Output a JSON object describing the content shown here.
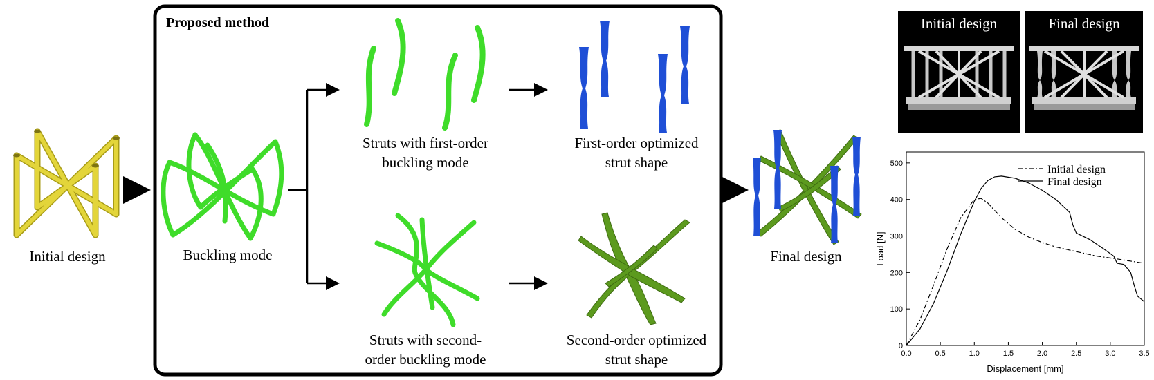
{
  "labels": {
    "initial_design": "Initial design",
    "buckling_mode": "Buckling mode",
    "proposed_method": "Proposed method",
    "struts_first_line1": "Struts with first-order",
    "struts_first_line2": "buckling mode",
    "first_opt_line1": "First-order optimized",
    "first_opt_line2": "strut shape",
    "struts_second_line1": "Struts with second-",
    "struts_second_line2": "order buckling mode",
    "second_opt_line1": "Second-order optimized",
    "second_opt_line2": "strut shape",
    "final_design": "Final design"
  },
  "photos": {
    "initial_title": "Initial design",
    "final_title": "Final design"
  },
  "colors": {
    "yellow": "#e3d53a",
    "yellow_dark": "#a89c18",
    "bright_green": "#3fdc2a",
    "dark_green": "#5c9a1e",
    "blue": "#1f4fd6",
    "black": "#000000"
  },
  "chart_data": {
    "type": "line",
    "xlabel": "Displacement [mm]",
    "ylabel": "Load [N]",
    "xlim": [
      0,
      3.5
    ],
    "ylim": [
      0,
      530
    ],
    "xticks": [
      "0.0",
      "0.5",
      "1.0",
      "1.5",
      "2.0",
      "2.5",
      "3.0",
      "3.5"
    ],
    "yticks": [
      "0",
      "100",
      "200",
      "300",
      "400",
      "500"
    ],
    "legend_position": "top-right",
    "series": [
      {
        "name": "Initial design",
        "style": "dash-dot",
        "x": [
          0,
          0.2,
          0.4,
          0.6,
          0.8,
          1.0,
          1.1,
          1.2,
          1.4,
          1.6,
          1.8,
          2.0,
          2.2,
          2.5,
          2.8,
          3.1,
          3.5
        ],
        "y": [
          0,
          70,
          165,
          265,
          350,
          400,
          403,
          390,
          350,
          318,
          297,
          282,
          270,
          257,
          245,
          237,
          225
        ]
      },
      {
        "name": "Final design",
        "style": "solid",
        "x": [
          0,
          0.2,
          0.4,
          0.6,
          0.8,
          1.0,
          1.1,
          1.2,
          1.3,
          1.4,
          1.6,
          1.8,
          2.0,
          2.2,
          2.4,
          2.45,
          2.5,
          2.7,
          2.9,
          3.05,
          3.1,
          3.2,
          3.3,
          3.35,
          3.4,
          3.5
        ],
        "y": [
          0,
          45,
          115,
          205,
          305,
          395,
          430,
          452,
          462,
          464,
          458,
          445,
          425,
          400,
          365,
          330,
          308,
          290,
          265,
          245,
          225,
          222,
          200,
          165,
          135,
          120
        ]
      }
    ]
  }
}
